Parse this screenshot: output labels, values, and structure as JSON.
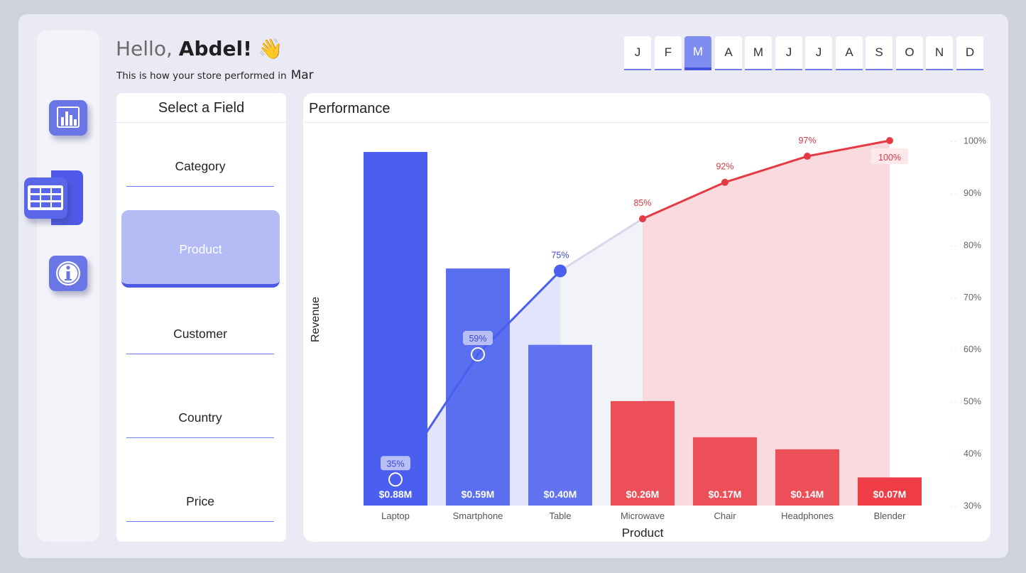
{
  "greeting": {
    "hello": "Hello",
    "sep": ",",
    "name": "Abdel!",
    "emoji": "👋",
    "subtitle": "This is how your store performed in",
    "month": "Mar"
  },
  "sidebar": {
    "items": [
      {
        "icon": "bar-chart-icon"
      },
      {
        "icon": "table-grid-icon",
        "active": true
      },
      {
        "icon": "info-icon"
      }
    ]
  },
  "months": {
    "items": [
      "J",
      "F",
      "M",
      "A",
      "M",
      "J",
      "J",
      "A",
      "S",
      "O",
      "N",
      "D"
    ],
    "active_index": 2
  },
  "field_panel": {
    "title": "Select a Field",
    "items": [
      "Category",
      "Product",
      "Customer",
      "Country",
      "Price"
    ],
    "selected": "Product"
  },
  "performance": {
    "title": "Performance",
    "accent_colors": {
      "top_bars": "#4a5ef0",
      "bottom_bars": "#ec4f58",
      "line_blue": "#4a5ef0",
      "line_red": "#e53a43"
    }
  },
  "chart_data": {
    "type": "bar",
    "xlabel": "Product",
    "ylabel": "Revenue",
    "categories": [
      "Laptop",
      "Smartphone",
      "Table",
      "Microwave",
      "Chair",
      "Headphones",
      "Blender"
    ],
    "series": [
      {
        "values": [
          0.88,
          0.59,
          0.4,
          0.26,
          0.17,
          0.14,
          0.07
        ],
        "labels": [
          "$0.88M",
          "$0.59M",
          "$0.40M",
          "$0.26M",
          "$0.17M",
          "$0.14M",
          "$0.07M"
        ]
      },
      {
        "values": [
          35,
          59,
          75,
          85,
          92,
          97,
          100
        ],
        "labels": [
          "35%",
          "59%",
          "75%",
          "85%",
          "92%",
          "97%",
          "100%"
        ]
      }
    ],
    "secondary_axis": {
      "ticks": [
        "30%",
        "40%",
        "50%",
        "60%",
        "70%",
        "80%",
        "90%",
        "100%"
      ],
      "range": [
        30,
        100
      ]
    },
    "grid": false
  }
}
